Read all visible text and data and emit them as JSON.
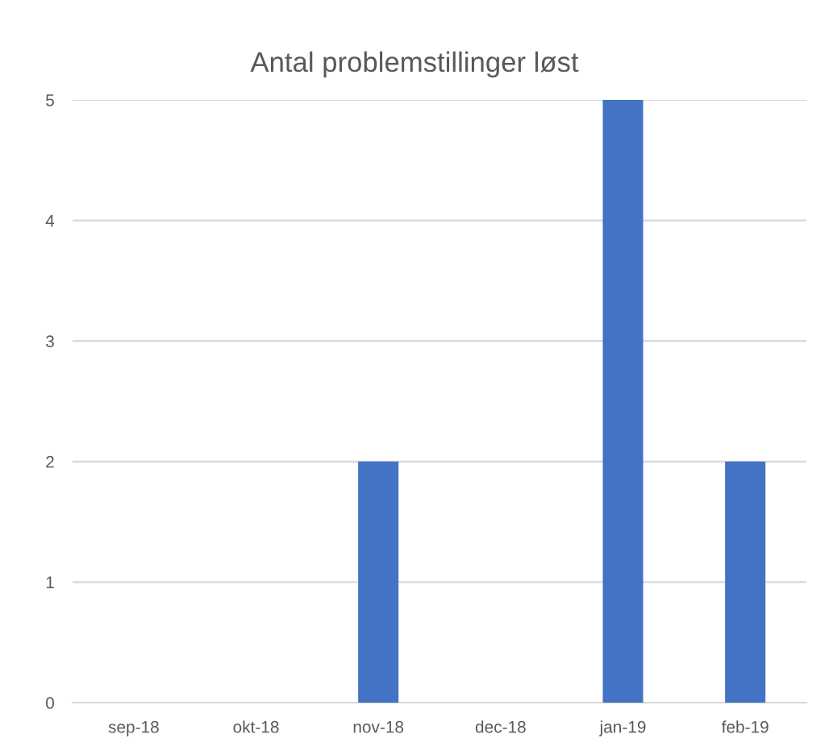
{
  "chart_data": {
    "type": "bar",
    "title": "Antal problemstillinger løst",
    "categories": [
      "sep-18",
      "okt-18",
      "nov-18",
      "dec-18",
      "jan-19",
      "feb-19"
    ],
    "values": [
      0,
      0,
      2,
      0,
      5,
      2
    ],
    "color": "#4472c4",
    "ylim": [
      0,
      5
    ],
    "yticks": [
      0,
      1,
      2,
      3,
      4,
      5
    ],
    "grid": "y",
    "legend": false
  }
}
